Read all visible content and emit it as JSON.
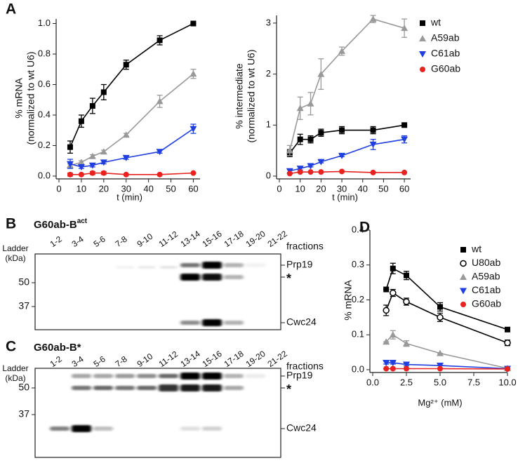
{
  "chart_data": [
    {
      "type": "line",
      "panel": "A",
      "ylabel": [
        "% mRNA",
        "(normalized to wt U6)"
      ],
      "xlabel": "t (min)",
      "x": [
        5,
        10,
        15,
        20,
        30,
        45,
        60
      ],
      "xlim": [
        0,
        63
      ],
      "xticks": [
        0,
        10,
        20,
        30,
        40,
        50,
        60
      ],
      "ylim": [
        0,
        1.03
      ],
      "yticks": [
        {
          "value": 0,
          "label": "0.0"
        },
        0.2,
        0.4,
        0.6,
        0.8,
        {
          "value": 1,
          "label": "1.0"
        }
      ],
      "legend": "none",
      "series": [
        {
          "color": "#000000",
          "marker": "square",
          "values": [
            0.19,
            0.36,
            0.46,
            0.55,
            0.73,
            0.89,
            1.0
          ],
          "errors": [
            0.04,
            0.04,
            0.05,
            0.05,
            0.03,
            0.03,
            0
          ]
        },
        {
          "color": "#999999",
          "marker": "triangle",
          "values": [
            0.07,
            0.09,
            0.13,
            0.16,
            0.27,
            0.49,
            0.67
          ],
          "errors": [
            0.01,
            0.01,
            0.01,
            0.01,
            0.01,
            0.04,
            0.03
          ]
        },
        {
          "color": "#1f3fe0",
          "marker": "triangle-down",
          "values": [
            0.08,
            0.06,
            0.07,
            0.09,
            0.12,
            0.16,
            0.31
          ],
          "errors": [
            0.03,
            0.01,
            0.01,
            0.01,
            0.01,
            0.01,
            0.03
          ]
        },
        {
          "color": "#e8231f",
          "marker": "circle",
          "values": [
            0.01,
            0.01,
            0.02,
            0.02,
            0.01,
            0.01,
            0.02
          ],
          "errors": [
            0.01,
            0,
            0.01,
            0.01,
            0,
            0,
            0
          ]
        }
      ]
    },
    {
      "type": "line",
      "ylabel": [
        "% intermediate",
        "(normalized to wt U6)"
      ],
      "xlabel": "t (min)",
      "x": [
        5,
        10,
        15,
        20,
        30,
        45,
        60
      ],
      "xlim": [
        0,
        63
      ],
      "xticks": [
        0,
        10,
        20,
        30,
        40,
        50,
        60
      ],
      "ylim": [
        0,
        3.15
      ],
      "yticks": [
        0,
        1,
        2,
        3
      ],
      "legend": "right",
      "series": [
        {
          "name": "wt",
          "color": "#000000",
          "marker": "square",
          "values": [
            0.45,
            0.72,
            0.72,
            0.85,
            0.9,
            0.9,
            1.0
          ],
          "errors": [
            0.07,
            0.1,
            0.07,
            0.07,
            0.07,
            0.07,
            0.02
          ]
        },
        {
          "name": "A59ab",
          "color": "#999999",
          "marker": "triangle",
          "values": [
            0.5,
            1.33,
            1.42,
            2.0,
            2.45,
            3.08,
            2.9
          ],
          "errors": [
            0.1,
            0.22,
            0.22,
            0.3,
            0.08,
            0.07,
            0.18
          ]
        },
        {
          "name": "C61ab",
          "color": "#1f3fe0",
          "marker": "triangle-down",
          "values": [
            0.1,
            0.15,
            0.2,
            0.28,
            0.4,
            0.62,
            0.72
          ],
          "errors": [
            0.03,
            0.03,
            0.02,
            0.02,
            0.02,
            0.1,
            0.07
          ]
        },
        {
          "name": "G60ab",
          "color": "#e8231f",
          "marker": "circle",
          "values": [
            0.05,
            0.08,
            0.08,
            0.08,
            0.09,
            0.07,
            0.07
          ],
          "errors": [
            0,
            0,
            0,
            0,
            0,
            0,
            0
          ]
        }
      ]
    },
    {
      "type": "line",
      "panel": "D",
      "ylabel": [
        "% mRNA"
      ],
      "xlabel": "Mg²⁺ (mM)",
      "x": [
        1,
        1.5,
        2.5,
        5,
        10
      ],
      "xlim": [
        0,
        10
      ],
      "xticks": [
        {
          "value": 0,
          "label": "0.0"
        },
        2.5,
        {
          "value": 5,
          "label": "5.0"
        },
        7.5,
        {
          "value": 10,
          "label": "10.0"
        }
      ],
      "ylim": [
        0,
        0.4
      ],
      "yticks": [
        {
          "value": 0,
          "label": "0.0"
        },
        0.1,
        0.2,
        0.3,
        0.4
      ],
      "legend": "upper right",
      "series": [
        {
          "name": "wt",
          "color": "#000000",
          "marker": "square",
          "values": [
            0.23,
            0.29,
            0.27,
            0.18,
            0.115
          ],
          "errors": [
            0,
            0.015,
            0.012,
            0.012,
            0
          ]
        },
        {
          "name": "U80ab",
          "color": "#000000",
          "marker": "open-circle",
          "values": [
            0.17,
            0.22,
            0.195,
            0.15,
            0.077
          ],
          "errors": [
            0.015,
            0.01,
            0.01,
            0.012,
            0.008
          ]
        },
        {
          "name": "A59ab",
          "color": "#999999",
          "marker": "triangle",
          "values": [
            0.08,
            0.1,
            0.075,
            0.047,
            0.004
          ],
          "errors": [
            0,
            0.012,
            0.008,
            0,
            0
          ]
        },
        {
          "name": "C61ab",
          "color": "#1f3fe0",
          "marker": "triangle-down",
          "values": [
            0.02,
            0.02,
            0.015,
            0.012,
            0.003
          ],
          "errors": [
            0.004,
            0.004,
            0.004,
            0,
            0
          ]
        },
        {
          "name": "G60ab",
          "color": "#e8231f",
          "marker": "circle",
          "values": [
            0.003,
            0.003,
            0.003,
            0.003,
            0.002
          ],
          "errors": [
            0,
            0,
            0,
            0,
            0
          ]
        }
      ]
    }
  ],
  "blots": [
    {
      "panel": "B",
      "title": "G60ab-B",
      "title_superscript": "act",
      "lanes": [
        "1-2",
        "3-4",
        "5-6",
        "7-8",
        "9-10",
        "11-12",
        "13-14",
        "15-16",
        "17-18",
        "19-20",
        "21-22"
      ],
      "lanes_label": "fractions",
      "ladder_label": [
        "Ladder",
        "(kDa)"
      ],
      "ladder_marks": [
        50,
        37
      ],
      "bands": [
        "Prp19",
        "*",
        "Cwc24"
      ]
    },
    {
      "panel": "C",
      "title": "G60ab-B*",
      "lanes": [
        "1-2",
        "3-4",
        "5-6",
        "7-8",
        "9-10",
        "11-12",
        "13-14",
        "15-16",
        "17-18",
        "19-20",
        "21-22"
      ],
      "lanes_label": "fractions",
      "ladder_label": [
        "Ladder",
        "(kDa)"
      ],
      "ladder_marks": [
        50,
        37
      ],
      "bands": [
        "Prp19",
        "*",
        "Cwc24"
      ]
    }
  ]
}
